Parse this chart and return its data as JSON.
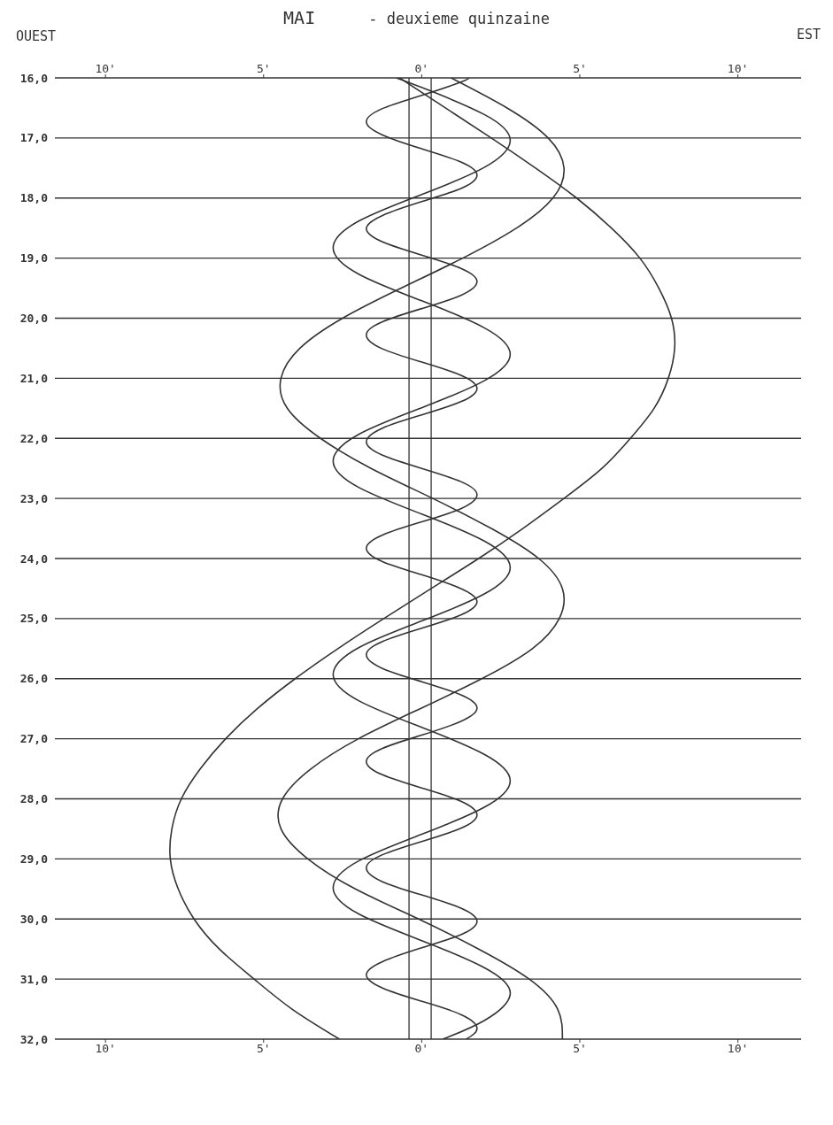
{
  "chart_data": {
    "type": "line",
    "title": "MAI",
    "subtitle": "- deuxieme quinzaine",
    "annotations": [
      "OUEST",
      "EST"
    ],
    "xlim": [
      -11.6,
      12.0
    ],
    "xticks": [
      {
        "value": 10,
        "label": "10'"
      },
      {
        "value": 5,
        "label": "5'"
      },
      {
        "value": 0,
        "label": "0'"
      },
      {
        "value": -5,
        "label": "5'"
      },
      {
        "value": -10,
        "label": "10'"
      }
    ],
    "x2lim": [
      -11.6,
      12.0
    ],
    "x2ticks": [
      {
        "value": 10,
        "label": "10'"
      },
      {
        "value": 5,
        "label": "5'"
      },
      {
        "value": 0,
        "label": "0'"
      },
      {
        "value": -5,
        "label": "5'"
      },
      {
        "value": -10,
        "label": "10'"
      }
    ],
    "ylim": [
      32,
      16
    ],
    "yticks": [
      {
        "value": 16,
        "label": "16,0"
      },
      {
        "value": 17,
        "label": "17,0"
      },
      {
        "value": 18,
        "label": "18,0"
      },
      {
        "value": 19,
        "label": "19,0"
      },
      {
        "value": 20,
        "label": "20,0"
      },
      {
        "value": 21,
        "label": "21,0"
      },
      {
        "value": 22,
        "label": "22,0"
      },
      {
        "value": 23,
        "label": "23,0"
      },
      {
        "value": 24,
        "label": "24,0"
      },
      {
        "value": 25,
        "label": "25,0"
      },
      {
        "value": 26,
        "label": "26,0"
      },
      {
        "value": 27,
        "label": "27,0"
      },
      {
        "value": 28,
        "label": "28,0"
      },
      {
        "value": 29,
        "label": "29,0"
      },
      {
        "value": 30,
        "label": "30,0"
      },
      {
        "value": 31,
        "label": "31,0"
      },
      {
        "value": 32,
        "label": "32,0"
      }
    ],
    "grid": "y",
    "marker": "none",
    "line_style": "solid",
    "ref_lines": [
      {
        "axis": "x",
        "value": -0.4,
        "color": "#333333"
      },
      {
        "axis": "x",
        "value": 0.3,
        "color": "#333333"
      }
    ],
    "series": [
      {
        "color": "#333333",
        "x": [
          -0.7,
          0.75,
          2.2,
          3.6,
          4.9,
          6.0,
          6.9,
          7.5,
          7.9,
          8.0,
          7.8,
          7.35,
          6.6,
          5.7,
          4.5,
          3.2,
          1.8,
          0.3,
          -1.2,
          -2.65,
          -4.0,
          -5.2,
          -6.2,
          -7.0,
          -7.6,
          -7.9,
          -7.95,
          -7.7,
          -7.2,
          -6.4,
          -5.3,
          -4.1,
          -2.6
        ],
        "values": [
          16,
          16.5,
          17,
          17.5,
          18,
          18.5,
          19,
          19.5,
          20,
          20.5,
          21,
          21.5,
          22,
          22.5,
          23,
          23.5,
          24,
          24.5,
          25,
          25.5,
          26,
          26.5,
          27,
          27.5,
          28,
          28.5,
          29,
          29.5,
          30,
          30.5,
          31,
          31.5,
          32
        ]
      },
      {
        "color": "#333333",
        "x": [
          0.93,
          2.7,
          4.0,
          4.5,
          4.15,
          3.0,
          1.3,
          -0.65,
          -2.5,
          -3.85,
          -4.45,
          -4.25,
          -3.2,
          -1.6,
          0.35,
          2.2,
          3.7,
          4.45,
          4.35,
          3.5,
          1.9,
          -0.05,
          -2.0,
          -3.5,
          -4.4,
          -4.45,
          -3.6,
          -2.1,
          -0.1,
          1.8,
          3.4,
          4.3,
          4.45
        ],
        "values": [
          16,
          16.5,
          17,
          17.5,
          18,
          18.5,
          19,
          19.5,
          20,
          20.5,
          21,
          21.5,
          22,
          22.5,
          23,
          23.5,
          24,
          24.5,
          25,
          25.5,
          26,
          26.5,
          27,
          27.5,
          28,
          28.5,
          29,
          29.5,
          30,
          30.5,
          31,
          31.5,
          32
        ]
      },
      {
        "color": "#333333",
        "x": [
          -0.8,
          0,
          1.98,
          2.8,
          1.98,
          0,
          -1.98,
          -2.8,
          -1.98,
          0,
          1.98,
          2.8,
          1.98,
          0,
          -1.98,
          -2.8,
          -1.98,
          0,
          1.98,
          2.8,
          1.98,
          0,
          -1.98,
          -2.8,
          -1.98,
          0,
          1.98,
          2.8,
          1.98,
          0,
          -1.98,
          -2.8,
          -1.98,
          0,
          1.98,
          2.8,
          1.98,
          0.67
        ],
        "values": [
          16,
          16.16,
          16.61,
          17.05,
          17.49,
          17.94,
          18.38,
          18.83,
          19.27,
          19.71,
          20.16,
          20.6,
          21.04,
          21.49,
          21.93,
          22.38,
          22.82,
          23.26,
          23.71,
          24.15,
          24.59,
          25.04,
          25.48,
          25.93,
          26.37,
          26.81,
          27.26,
          27.7,
          28.14,
          28.59,
          29.03,
          29.48,
          29.92,
          30.36,
          30.81,
          31.25,
          31.69,
          32
        ]
      },
      {
        "color": "#333333",
        "x": [
          1.5,
          1.24,
          0,
          -1.24,
          -1.75,
          -1.24,
          0,
          1.24,
          1.75,
          1.24,
          0,
          -1.24,
          -1.75,
          -1.24,
          0,
          1.24,
          1.75,
          1.24,
          0,
          -1.24,
          -1.75,
          -1.24,
          0,
          1.24,
          1.75,
          1.24,
          0,
          -1.24,
          -1.75,
          -1.24,
          0,
          1.24,
          1.75,
          1.24,
          0,
          -1.24,
          -1.75,
          -1.24,
          0,
          1.24,
          1.75,
          1.24,
          0,
          -1.24,
          -1.75,
          -1.24,
          0,
          1.24,
          1.75,
          1.24,
          0,
          -1.24,
          -1.75,
          -1.24,
          0,
          1.24,
          1.75,
          1.24,
          0,
          -1.24,
          -1.75,
          -1.24,
          0,
          1.24,
          1.75,
          1.24,
          0,
          -1.24,
          -1.75,
          -1.24,
          0,
          1.24,
          1.75,
          1.41
        ],
        "values": [
          16,
          16.07,
          16.29,
          16.51,
          16.73,
          16.95,
          17.18,
          17.4,
          17.62,
          17.84,
          18.06,
          18.29,
          18.51,
          18.73,
          18.95,
          19.17,
          19.39,
          19.62,
          19.84,
          20.06,
          20.28,
          20.51,
          20.73,
          20.95,
          21.17,
          21.39,
          21.61,
          21.83,
          22.06,
          22.28,
          22.5,
          22.72,
          22.94,
          23.17,
          23.39,
          23.61,
          23.83,
          24.05,
          24.27,
          24.5,
          24.72,
          24.94,
          25.16,
          25.38,
          25.6,
          25.83,
          26.05,
          26.27,
          26.49,
          26.71,
          26.94,
          27.16,
          27.38,
          27.6,
          27.82,
          28.04,
          28.27,
          28.49,
          28.71,
          28.93,
          29.15,
          29.38,
          29.6,
          29.82,
          30.04,
          30.26,
          30.48,
          30.71,
          30.93,
          31.15,
          31.37,
          31.59,
          31.82,
          32
        ]
      }
    ]
  }
}
